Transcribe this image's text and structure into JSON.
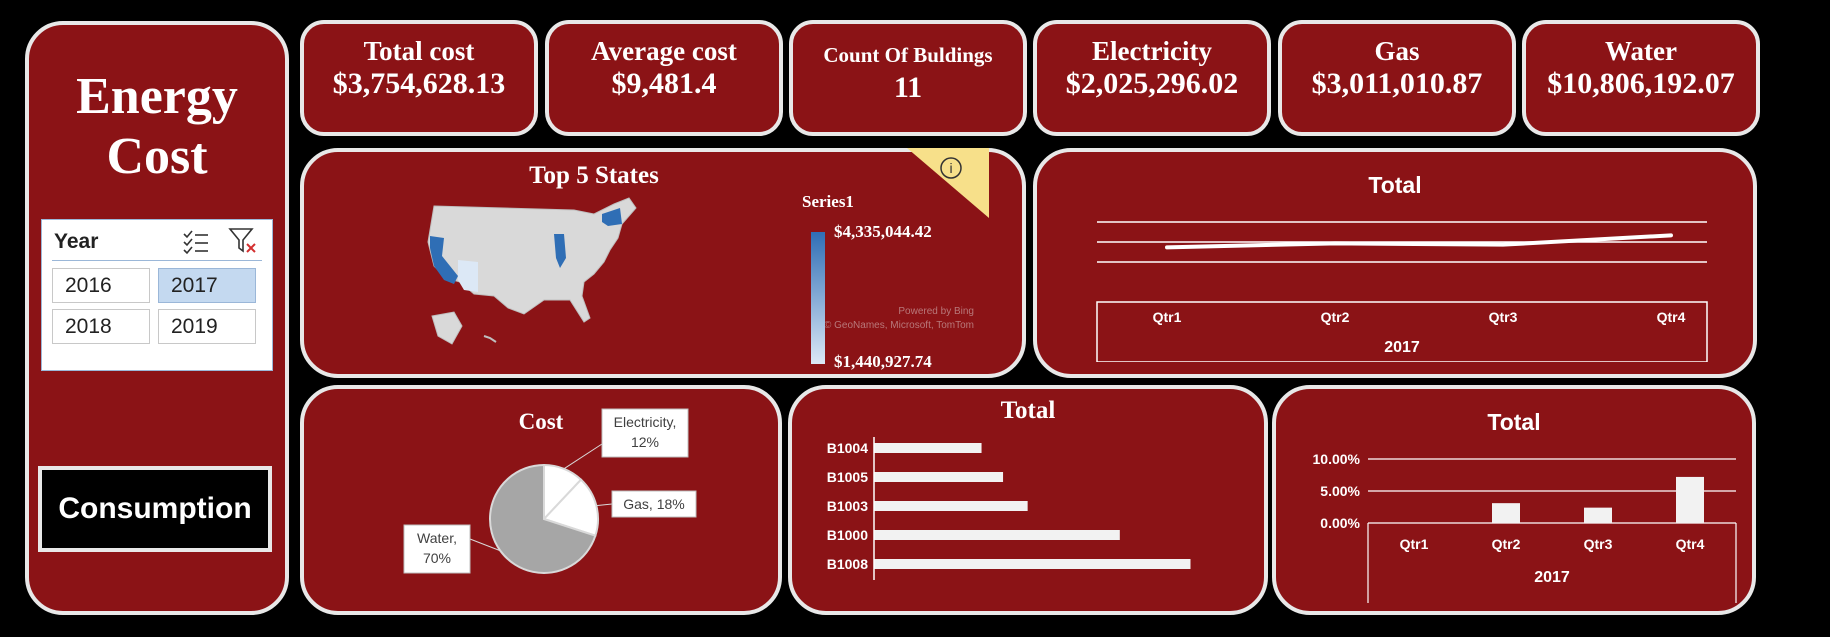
{
  "sidebar": {
    "title_line1": "Energy",
    "title_line2": "Cost",
    "slicer": {
      "header": "Year",
      "years": [
        "2016",
        "2017",
        "2018",
        "2019"
      ],
      "selected": "2017"
    },
    "consumption_label": "Consumption"
  },
  "kpis": [
    {
      "title": "Total cost",
      "value": "$3,754,628.13"
    },
    {
      "title": "Average cost",
      "value": "$9,481.4"
    },
    {
      "title": "Count Of Buldings",
      "value": "11"
    },
    {
      "title": "Electricity",
      "value": "$2,025,296.02"
    },
    {
      "title": "Gas",
      "value": "$3,011,010.87"
    },
    {
      "title": "Water",
      "value": "$10,806,192.07"
    }
  ],
  "map": {
    "title": "Top 5 States",
    "legend_title": "Series1",
    "legend_max": "$4,335,044.42",
    "legend_min": "$1,440,927.74",
    "powered_by": "Powered by Bing",
    "attribution": "© GeoNames, Microsoft, TomTom",
    "info_icon": "i"
  },
  "colors": {
    "panel": "#8b1316",
    "border": "#e8e8e8",
    "map_high": "#2f6eb5",
    "map_low": "#dce8f6",
    "slicer_selected": "#c4d9f0"
  },
  "chart_data": [
    {
      "type": "line",
      "title": "Total",
      "categories": [
        "Qtr1",
        "Qtr2",
        "Qtr3",
        "Qtr4"
      ],
      "group_label": "2017",
      "series": [
        {
          "name": "Total",
          "values": [
            0.3,
            0.45,
            0.4,
            0.75
          ]
        }
      ],
      "ylim": [
        -1,
        2
      ]
    },
    {
      "type": "pie",
      "title": "Cost",
      "slices": [
        {
          "label": "Electricity",
          "percent": 12,
          "text": "Electricity,\n12%"
        },
        {
          "label": "Gas",
          "percent": 18,
          "text": "Gas, 18%"
        },
        {
          "label": "Water",
          "percent": 70,
          "text": "Water,\n70%"
        }
      ]
    },
    {
      "type": "bar",
      "orientation": "horizontal",
      "title": "Total",
      "categories": [
        "B1004",
        "B1005",
        "B1003",
        "B1000",
        "B1008"
      ],
      "values": [
        35,
        42,
        50,
        80,
        103
      ],
      "xlim": [
        0,
        110
      ]
    },
    {
      "type": "bar",
      "title": "Total",
      "categories": [
        "Qtr1",
        "Qtr2",
        "Qtr3",
        "Qtr4"
      ],
      "values": [
        0,
        3.1,
        2.4,
        7.2
      ],
      "group_label": "2017",
      "ylim": [
        0,
        10
      ],
      "yticks": [
        "10.00%",
        "5.00%",
        "0.00%"
      ]
    }
  ]
}
